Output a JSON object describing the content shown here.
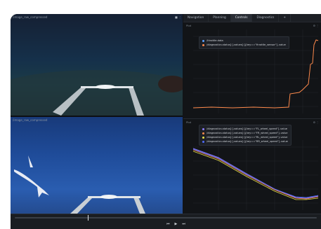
{
  "cameras": {
    "top_label": "/image_raw_compressed",
    "bottom_label": "/image_raw_compressed"
  },
  "tabs": [
    {
      "label": "Navigation"
    },
    {
      "label": "Planning"
    },
    {
      "label": "Controls"
    },
    {
      "label": "Diagnostics"
    },
    {
      "label": "+"
    }
  ],
  "panel_top": {
    "title": "Plot",
    "legend": [
      {
        "label": "/throttle.data",
        "color": "#5aa0ff"
      },
      {
        "label": "/diagnostics.status[:].values[:]{key==\"throttle_sensor\"}.value",
        "color": "#ff8a4c"
      }
    ]
  },
  "panel_bottom": {
    "title": "Plot",
    "legend": [
      {
        "label": "/diagnostics.status[:].values[:]{key==\"FL_wheel_speed\"}.value",
        "color": "#8c7dff"
      },
      {
        "label": "/diagnostics.status[:].values[:]{key==\"FR_wheel_speed\"}.value",
        "color": "#ff8a4c"
      },
      {
        "label": "/diagnostics.status[:].values[:]{key==\"RL_wheel_speed\"}.value",
        "color": "#e7e04a"
      },
      {
        "label": "/diagnostics.status[:].values[:]{key==\"RR_wheel_speed\"}.value",
        "color": "#4e6bff"
      }
    ]
  },
  "playback": {
    "prev": "⏮",
    "play": "▶",
    "next": "⏭"
  }
}
